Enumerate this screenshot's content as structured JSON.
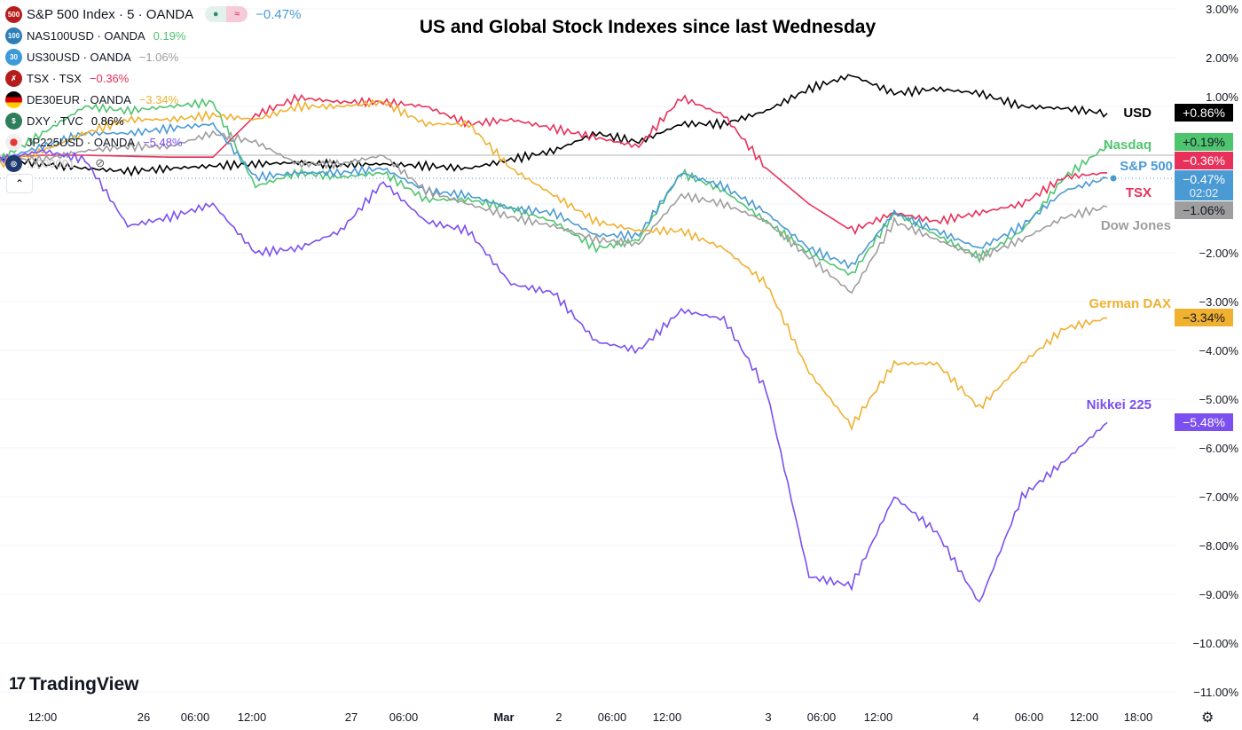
{
  "legend": [
    {
      "symbol": "S&P 500 Index · 5 · OANDA",
      "change": "−0.47%",
      "icon": "500",
      "icon_color": "#b71c1c",
      "color": "#4a9ad4"
    },
    {
      "symbol": "NAS100USD · OANDA",
      "change": "0.19%",
      "icon": "100",
      "icon_color": "#2e7fb8",
      "color": "#4fc46f"
    },
    {
      "symbol": "US30USD · OANDA",
      "change": "−1.06%",
      "icon": "30",
      "icon_color": "#3d9ad8",
      "color": "#9e9e9e"
    },
    {
      "symbol": "TSX · TSX",
      "change": "−0.36%",
      "icon": "✗",
      "icon_color": "#b71c1c",
      "color": "#e8315a"
    },
    {
      "symbol": "DE30EUR · OANDA",
      "change": "−3.34%",
      "icon": "flag-germany",
      "icon_color": "#000000",
      "color": "#f0b030"
    },
    {
      "symbol": "DXY · TVC",
      "change": "0.86%",
      "icon": "$",
      "icon_color": "#2e7d5b",
      "color": "#000000"
    },
    {
      "symbol": "JP225USD · OANDA",
      "change": "−5.48%",
      "icon": "flag-japan",
      "icon_color": "#eeeeee",
      "color": "#7b4ff0"
    },
    {
      "symbol": "...000001",
      "change": "",
      "icon": "eye-off-icon",
      "icon_color": "#1e3a6e",
      "color": "#c8c8c8"
    }
  ],
  "chart_data": {
    "type": "line",
    "title": "US and Global Stock Indexes since last Wednesday",
    "y_unit": "%",
    "ylim": [
      -11,
      3
    ],
    "y_ticks": [
      "3.00%",
      "2.00%",
      "1.00%",
      "−2.00%",
      "−3.00%",
      "−4.00%",
      "−5.00%",
      "−6.00%",
      "−7.00%",
      "−8.00%",
      "−9.00%",
      "−10.00%",
      "−11.00%"
    ],
    "x_ticks": [
      "12:00",
      "26",
      "06:00",
      "12:00",
      "27",
      "06:00",
      "Mar",
      "2",
      "06:00",
      "12:00",
      "3",
      "06:00",
      "12:00",
      "4",
      "06:00",
      "12:00",
      "18:00"
    ],
    "series": [
      {
        "name": "USD",
        "color": "#000000",
        "badge": "+0.86%",
        "values": [
          -0.09,
          -0.18,
          -0.27,
          -0.33,
          -0.27,
          -0.22,
          -0.18,
          -0.15,
          -0.2,
          -0.18,
          -0.22,
          -0.27,
          -0.09,
          0.09,
          0.45,
          0.27,
          0.64,
          0.64,
          0.91,
          1.36,
          1.64,
          1.27,
          1.36,
          1.27,
          1.0,
          0.96,
          0.86
        ]
      },
      {
        "name": "Nasdaq",
        "color": "#4fc46f",
        "badge": "+0.19%",
        "values": [
          -0.09,
          0.45,
          1.0,
          0.91,
          1.0,
          1.09,
          -0.64,
          -0.36,
          -0.45,
          -0.36,
          -0.91,
          -0.91,
          -1.09,
          -1.36,
          -1.91,
          -1.73,
          -0.36,
          -0.73,
          -1.36,
          -2.0,
          -2.45,
          -1.18,
          -1.64,
          -2.09,
          -1.55,
          -0.45,
          0.19
        ]
      },
      {
        "name": "TSX",
        "color": "#e8315a",
        "badge": "−0.36%",
        "values": [
          -0.05,
          0,
          0,
          -0.02,
          -0.04,
          -0.04,
          0.82,
          1.18,
          1.09,
          1.09,
          1.0,
          0.64,
          0.73,
          0.55,
          0.36,
          0.18,
          1.18,
          0.82,
          -0.27,
          -1.0,
          -1.55,
          -1.18,
          -1.36,
          -1.18,
          -1.0,
          -0.45,
          -0.36
        ]
      },
      {
        "name": "S&P 500",
        "color": "#4a9ad4",
        "badge": "−0.47%",
        "badge_sub": "02:02",
        "values": [
          -0.09,
          0.18,
          0.45,
          0.45,
          0.55,
          0.64,
          -0.45,
          -0.36,
          -0.36,
          -0.27,
          -0.73,
          -0.82,
          -1.09,
          -1.18,
          -1.64,
          -1.64,
          -0.36,
          -0.64,
          -1.18,
          -1.91,
          -2.27,
          -1.18,
          -1.55,
          -1.91,
          -1.45,
          -0.73,
          -0.47
        ]
      },
      {
        "name": "Dow Jones",
        "color": "#9e9e9e",
        "badge": "−1.06%",
        "values": [
          -0.09,
          -0.09,
          0.09,
          0.18,
          0.18,
          0.45,
          0.27,
          -0.18,
          -0.18,
          0,
          -0.73,
          -1.0,
          -1.27,
          -1.45,
          -1.73,
          -1.82,
          -0.82,
          -1.0,
          -1.36,
          -2.09,
          -2.82,
          -1.36,
          -1.73,
          -2.09,
          -1.73,
          -1.27,
          -1.06
        ]
      },
      {
        "name": "German DAX",
        "color": "#f0b030",
        "badge": "−3.34%",
        "values": [
          -0.18,
          0.09,
          0.45,
          0.73,
          0.73,
          0.82,
          0.73,
          1.0,
          1.0,
          1.09,
          0.64,
          0.64,
          -0.27,
          -0.82,
          -1.36,
          -1.55,
          -1.55,
          -1.91,
          -2.64,
          -4.45,
          -5.55,
          -4.27,
          -4.27,
          -5.18,
          -4.27,
          -3.55,
          -3.34
        ]
      },
      {
        "name": "Nikkei 225",
        "color": "#7b4ff0",
        "badge": "−5.48%",
        "values": [
          -0.09,
          0.09,
          -0.09,
          -1.45,
          -1.27,
          -1.0,
          -2.0,
          -1.91,
          -1.55,
          -0.55,
          -1.36,
          -1.55,
          -2.64,
          -2.82,
          -3.82,
          -4.0,
          -3.18,
          -3.36,
          -4.82,
          -8.64,
          -8.82,
          -7.0,
          -7.73,
          -9.18,
          -7.0,
          -6.27,
          -5.48
        ]
      }
    ],
    "grid": true,
    "legend": "top-left"
  },
  "branding": "TradingView"
}
